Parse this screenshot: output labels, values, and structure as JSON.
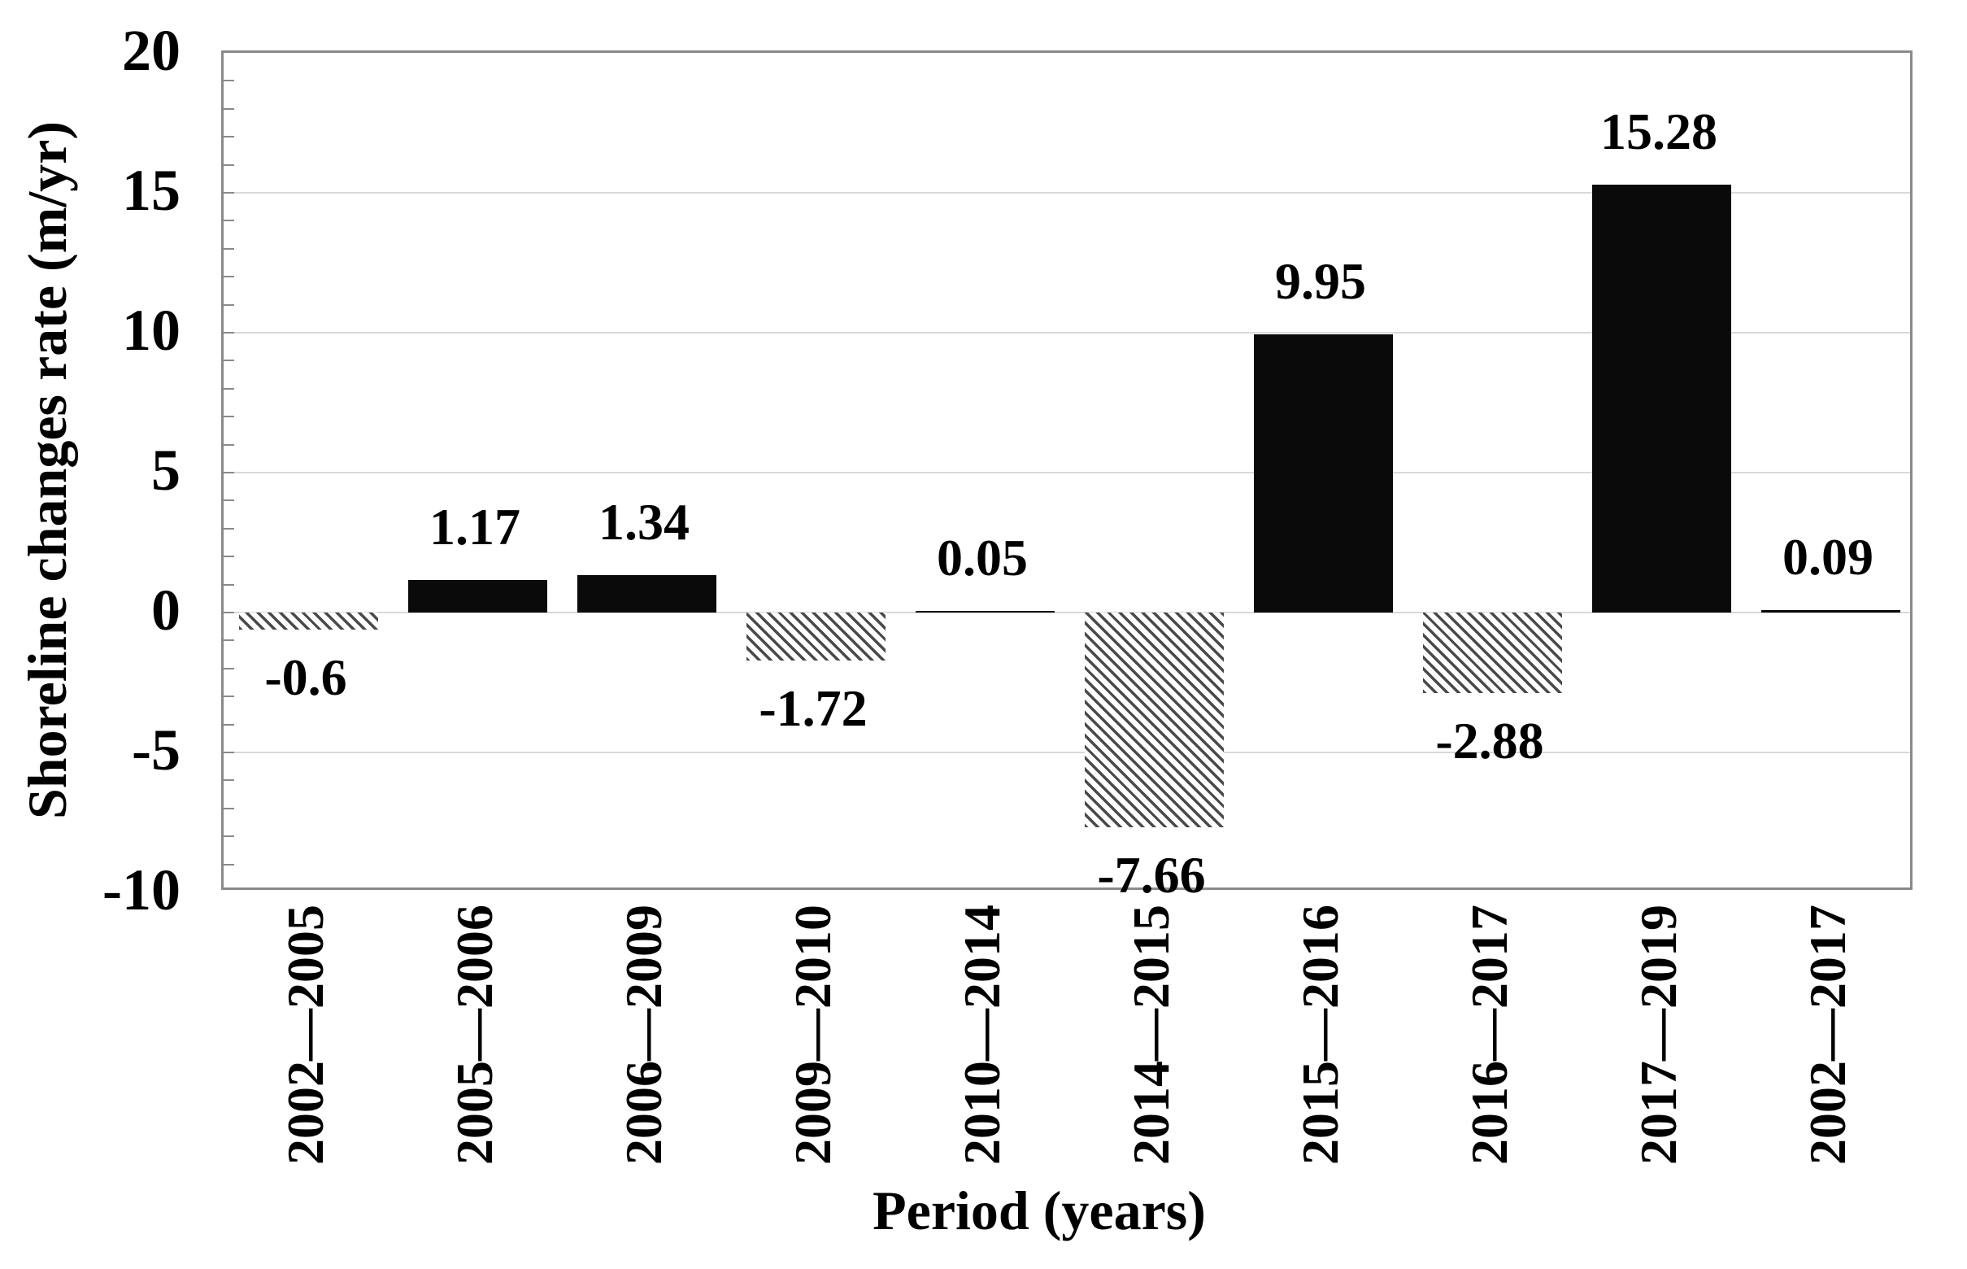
{
  "chart_data": {
    "type": "bar",
    "title": "",
    "xlabel": "Period (years)",
    "ylabel": "Shoreline changes rate (m/yr)",
    "categories": [
      "2002—2005",
      "2005—2006",
      "2006—2009",
      "2009—2010",
      "2010—2014",
      "2014—2015",
      "2015—2016",
      "2016—2017",
      "2017—2019",
      "2002—2017"
    ],
    "values": [
      -0.6,
      1.17,
      1.34,
      -1.72,
      0.05,
      -7.66,
      9.95,
      -2.88,
      15.28,
      0.09
    ],
    "data_labels": [
      "-0.6",
      "1.17",
      "1.34",
      "-1.72",
      "0.05",
      "-7.66",
      "9.95",
      "-2.88",
      "15.28",
      "0.09"
    ],
    "ylim": [
      -10,
      20
    ],
    "yticks": [
      20,
      15,
      10,
      5,
      0,
      -5,
      -10
    ],
    "ytick_labels": [
      "20",
      "15",
      "10",
      "5",
      "0",
      "-5",
      "-10"
    ],
    "minor_tick_interval": 1,
    "gridline_interval": 5,
    "grid": true,
    "legend_position": "none",
    "bar_style_positive": "solid",
    "bar_style_negative": "diagonal-hatch",
    "colors": {
      "bar_fill": "#0a0a0a",
      "hatch_line": "#4a4a4a",
      "hatch_background": "#ffffff",
      "gridline": "#d9d9d9",
      "frame": "#8a8a8a",
      "text": "#000000"
    }
  }
}
